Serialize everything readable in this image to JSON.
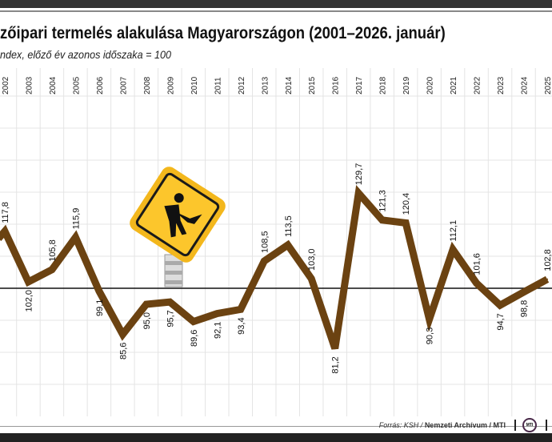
{
  "chart_data": {
    "type": "line",
    "title": "zőipari termelés alakulása Magyarországon (2001–2026. január)",
    "subtitle": "ndex, előző év azonos időszaka = 100",
    "x": [
      2002,
      2003,
      2004,
      2005,
      2006,
      2007,
      2008,
      2009,
      2010,
      2011,
      2012,
      2013,
      2014,
      2015,
      2016,
      2017,
      2018,
      2019,
      2020,
      2021,
      2022,
      2023,
      2024,
      2025
    ],
    "values": [
      117.8,
      102.0,
      105.8,
      115.9,
      99.1,
      85.6,
      95.0,
      95.7,
      89.6,
      92.1,
      93.4,
      108.5,
      113.5,
      103.0,
      81.2,
      129.7,
      121.3,
      120.4,
      90.3,
      112.1,
      101.6,
      94.7,
      98.8,
      102.8
    ],
    "labels": [
      "117,8",
      "102,0",
      "105,8",
      "115,9",
      "99,1",
      "85,6",
      "95,0",
      "95,7",
      "89,6",
      "92,1",
      "93,4",
      "108,5",
      "113,5",
      "103,0",
      "81,2",
      "129,7",
      "121,3",
      "120,4",
      "90,3",
      "112,1",
      "101,6",
      "94,7",
      "98,8",
      "102,8"
    ],
    "tick_labels": [
      "2002",
      "2003",
      "2004",
      "2005",
      "2006",
      "2007",
      "2008",
      "2009",
      "2010",
      "2011",
      "2012",
      "2013",
      "2014",
      "2015",
      "2016",
      "2017",
      "2018",
      "2019",
      "2020",
      "2021",
      "2022",
      "2023",
      "2024",
      "2025"
    ],
    "reference_line": 100,
    "grid": true,
    "line_color": "#6b4211",
    "icon": "road-work-sign-icon"
  },
  "footer": {
    "source_prefix": "Forrás: KSH / ",
    "source_bold": "Nemzeti Archívum / MTI",
    "logo": "MTI"
  }
}
